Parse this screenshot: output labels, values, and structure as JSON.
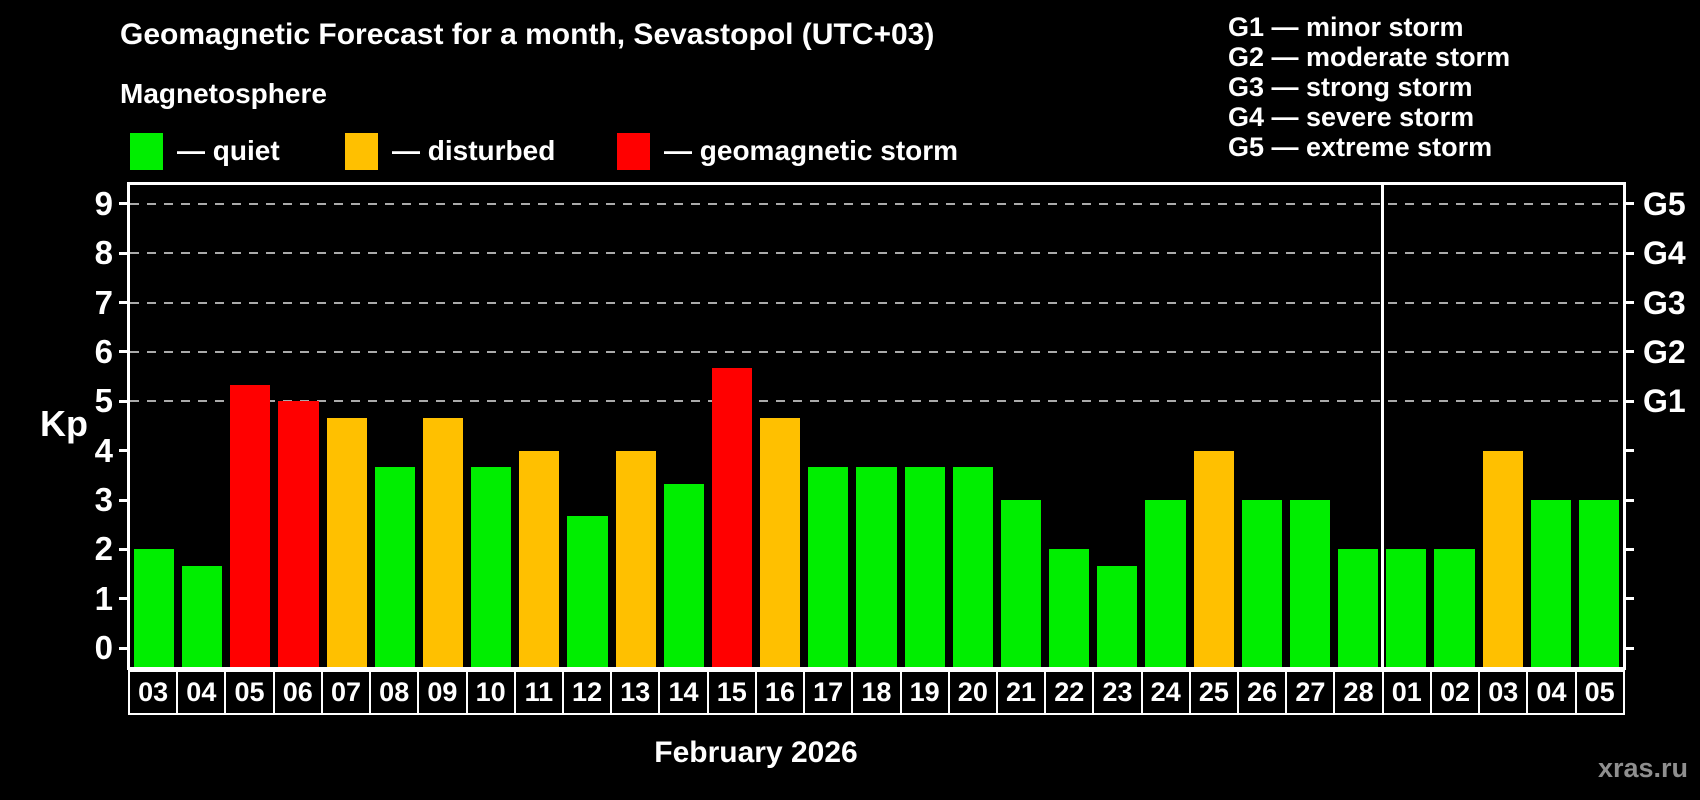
{
  "title": "Geomagnetic Forecast for a month, Sevastopol (UTC+03)",
  "subtitle": "Magnetosphere",
  "legend": [
    {
      "name": "quiet",
      "label": "— quiet",
      "color": "#00ee00"
    },
    {
      "name": "disturbed",
      "label": "— disturbed",
      "color": "#ffc000"
    },
    {
      "name": "storm",
      "label": "— geomagnetic storm",
      "color": "#ff0000"
    }
  ],
  "g_legend": [
    "G1 — minor storm",
    "G2 — moderate storm",
    "G3 — strong storm",
    "G4 — severe storm",
    "G5 — extreme storm"
  ],
  "watermark": "xras.ru",
  "chart_data": {
    "type": "bar",
    "title": "Geomagnetic Forecast for a month, Sevastopol (UTC+03)",
    "xlabel": "February 2026",
    "ylabel": "Kp",
    "ylim": [
      0,
      9
    ],
    "yticks": [
      0,
      1,
      2,
      3,
      4,
      5,
      6,
      7,
      8,
      9
    ],
    "gridlines_at": [
      5,
      6,
      7,
      8,
      9
    ],
    "grid": "dashed horizontal lines at Kp 5-9 only",
    "legend_position": "top-left",
    "right_axis": [
      {
        "label": "G1",
        "kp": 5
      },
      {
        "label": "G2",
        "kp": 6
      },
      {
        "label": "G3",
        "kp": 7
      },
      {
        "label": "G4",
        "kp": 8
      },
      {
        "label": "G5",
        "kp": 9
      }
    ],
    "categories": [
      "03",
      "04",
      "05",
      "06",
      "07",
      "08",
      "09",
      "10",
      "11",
      "12",
      "13",
      "14",
      "15",
      "16",
      "17",
      "18",
      "19",
      "20",
      "21",
      "22",
      "23",
      "24",
      "25",
      "26",
      "27",
      "28",
      "01",
      "02",
      "03",
      "04",
      "05"
    ],
    "values": [
      2.0,
      1.67,
      5.33,
      5.0,
      4.67,
      3.67,
      4.67,
      3.67,
      4.0,
      2.67,
      4.0,
      3.33,
      5.67,
      4.67,
      3.67,
      3.67,
      3.67,
      3.67,
      3.0,
      2.0,
      1.67,
      3.0,
      4.0,
      3.0,
      3.0,
      2.0,
      2.0,
      2.0,
      4.0,
      3.0,
      3.0
    ],
    "statuses": [
      "quiet",
      "quiet",
      "storm",
      "storm",
      "disturbed",
      "quiet",
      "disturbed",
      "quiet",
      "disturbed",
      "quiet",
      "disturbed",
      "quiet",
      "storm",
      "disturbed",
      "quiet",
      "quiet",
      "quiet",
      "quiet",
      "quiet",
      "quiet",
      "quiet",
      "quiet",
      "disturbed",
      "quiet",
      "quiet",
      "quiet",
      "quiet",
      "quiet",
      "disturbed",
      "quiet",
      "quiet"
    ],
    "colors": {
      "quiet": "#00ee00",
      "disturbed": "#ffc000",
      "storm": "#ff0000"
    },
    "month_separator_after_index": 25
  }
}
